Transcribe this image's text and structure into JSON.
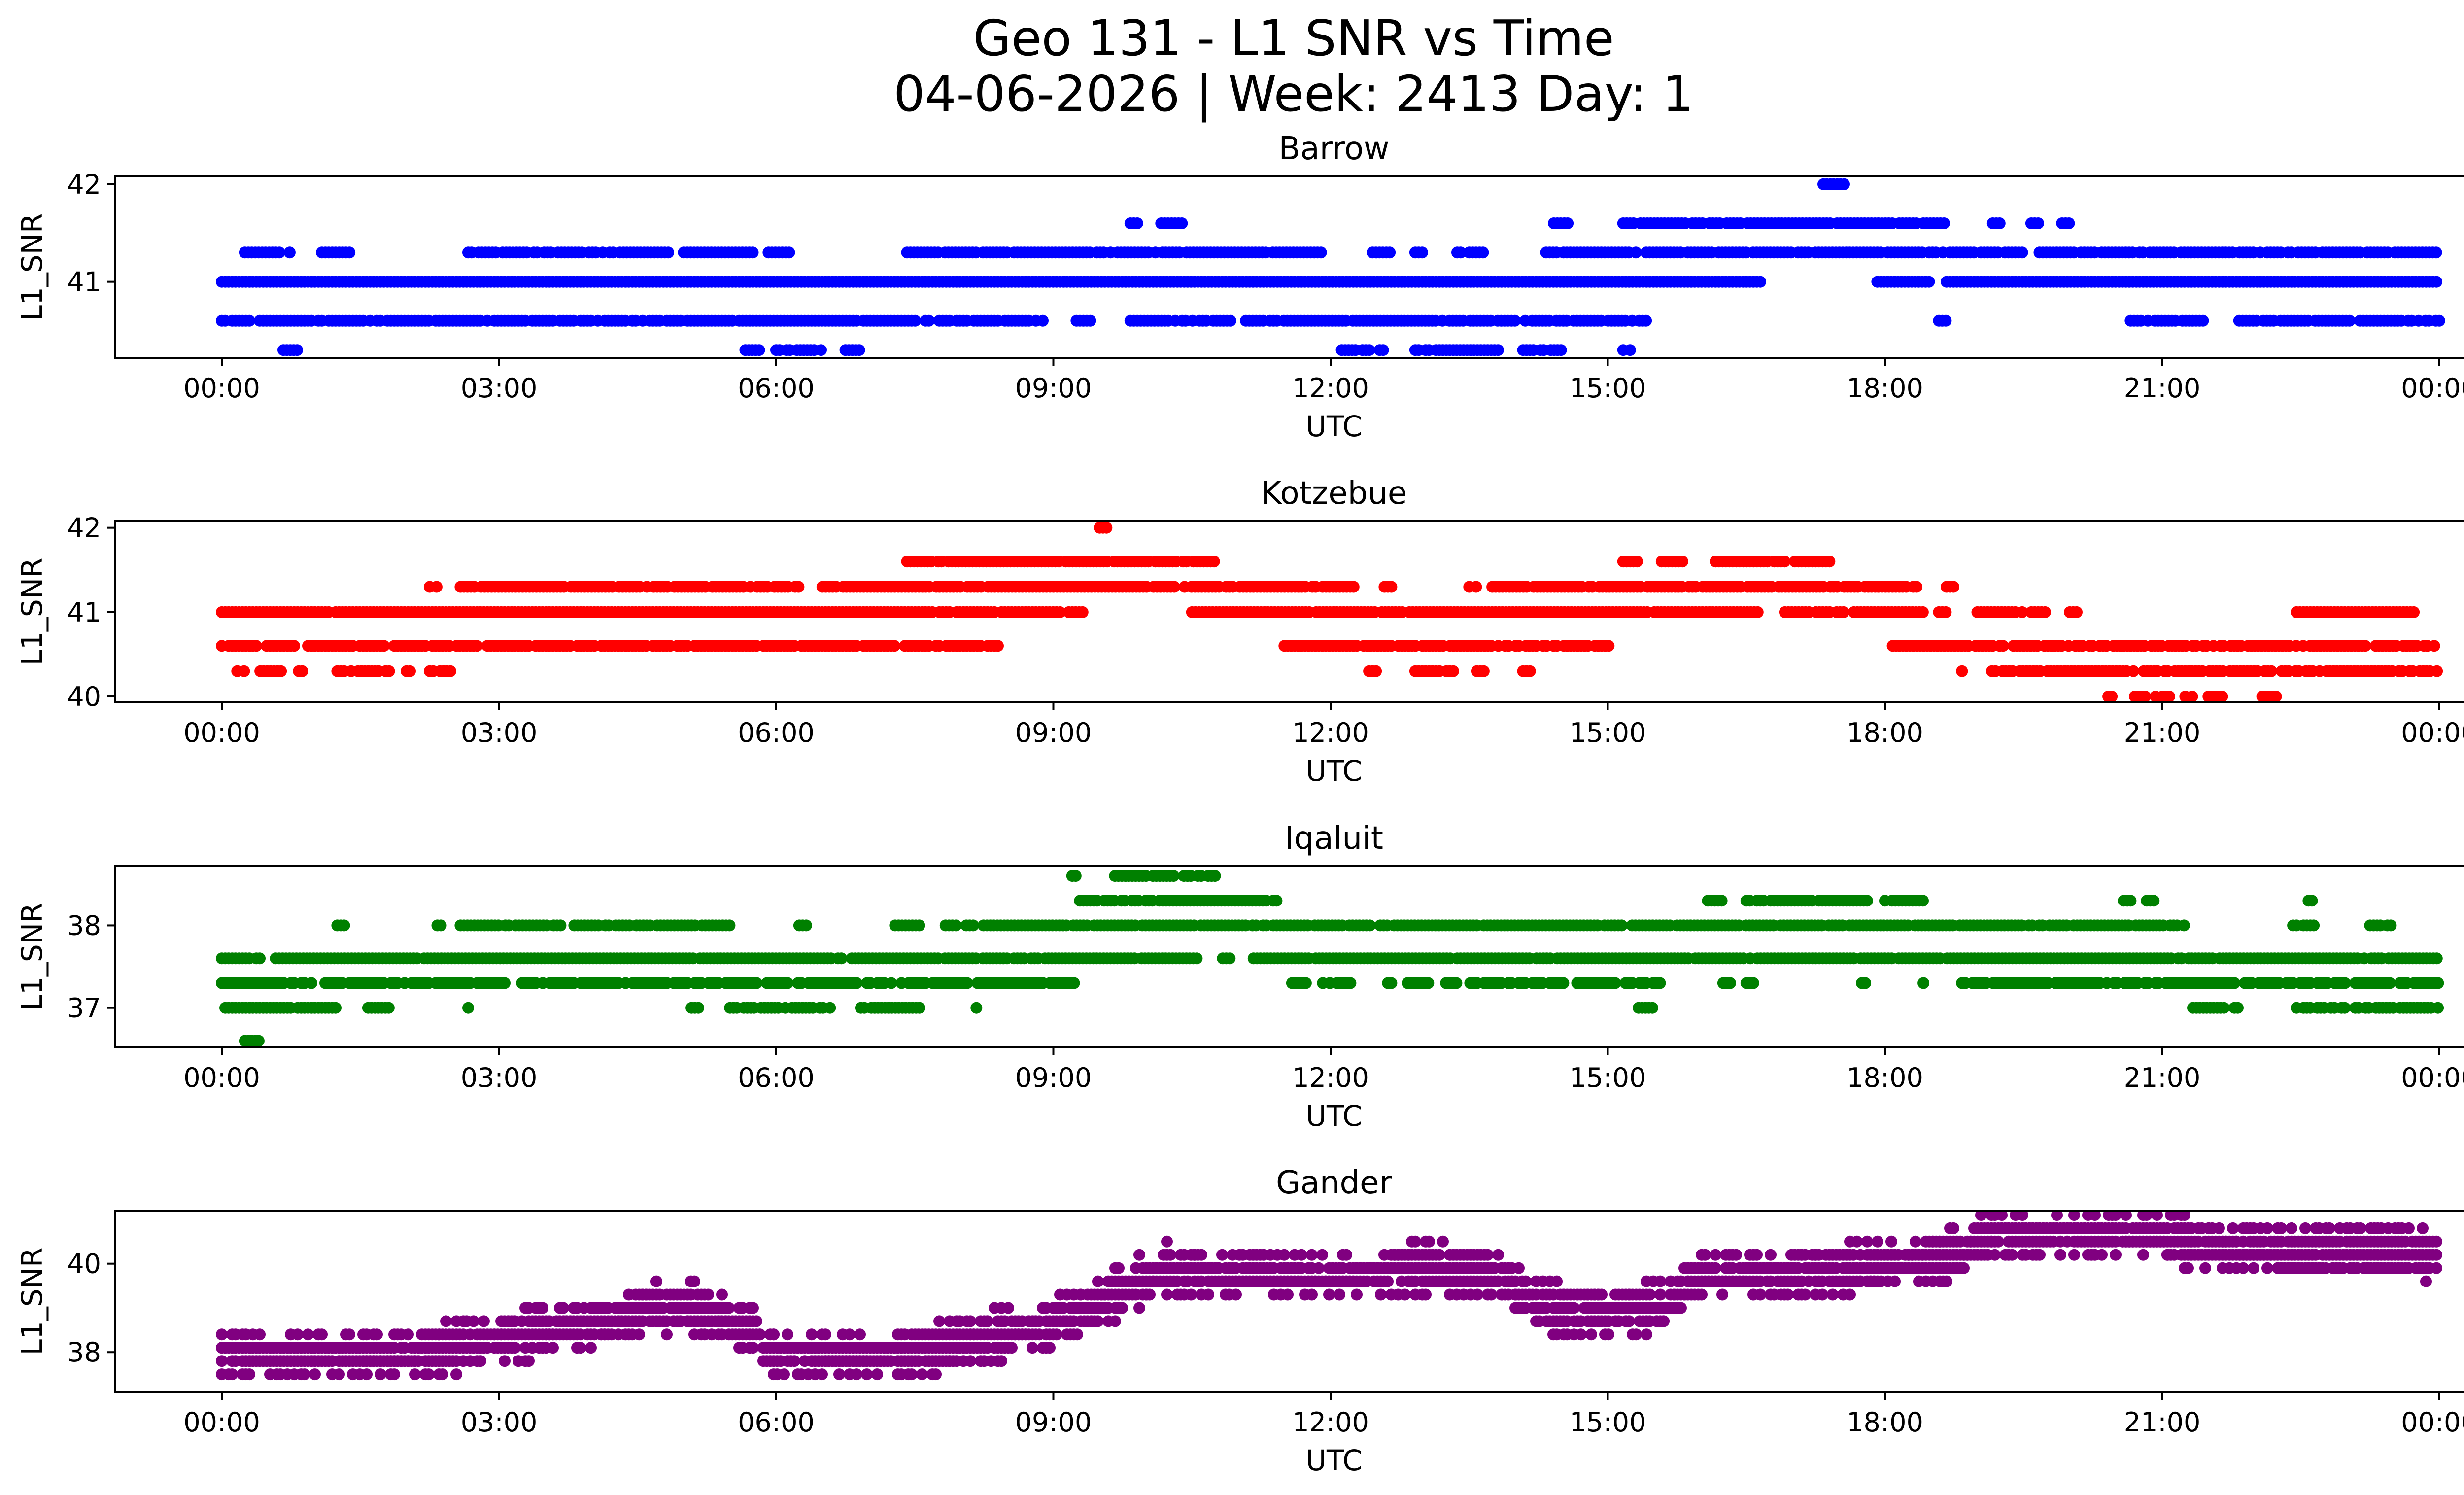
{
  "figure": {
    "title_line1": "Geo 131 - L1 SNR vs Time",
    "title_line2": "04-06-2026 | Week: 2413 Day: 1"
  },
  "chart_data": [
    {
      "type": "scatter",
      "title": "Barrow",
      "xlabel": "UTC",
      "ylabel": "L1_SNR",
      "color": "#0000ff",
      "xlim": [
        "23:36",
        "00:48 (next day)"
      ],
      "x_ticks": [
        "00:00",
        "03:00",
        "06:00",
        "09:00",
        "12:00",
        "15:00",
        "18:00",
        "21:00",
        "00:00"
      ],
      "ylim": [
        40.22,
        42.08
      ],
      "y_ticks": [
        42,
        41
      ],
      "y_tick_labels": [
        "42",
        "41"
      ],
      "bands": [
        {
          "y": 40.3,
          "segments": [
            [
              "00:40",
              "00:50"
            ],
            [
              "05:40",
              "05:50"
            ],
            [
              "06:00",
              "06:30"
            ],
            [
              "06:45",
              "06:55"
            ],
            [
              "12:05",
              "12:35"
            ],
            [
              "12:55",
              "13:50"
            ],
            [
              "14:05",
              "14:30"
            ],
            [
              "15:10",
              "15:15"
            ]
          ],
          "density": 0.8
        },
        {
          "y": 40.6,
          "segments": [
            [
              "00:00",
              "08:55"
            ],
            [
              "09:15",
              "09:25"
            ],
            [
              "09:50",
              "10:55"
            ],
            [
              "11:05",
              "15:25"
            ],
            [
              "18:35",
              "18:40"
            ],
            [
              "20:35",
              "21:30"
            ],
            [
              "21:50",
              "24:00"
            ]
          ],
          "density": 0.85
        },
        {
          "y": 41.0,
          "segments": [
            [
              "00:00",
              "16:40"
            ],
            [
              "17:55",
              "18:30"
            ],
            [
              "18:40",
              "24:00"
            ]
          ],
          "density": 1.0
        },
        {
          "y": 41.3,
          "segments": [
            [
              "00:15",
              "00:45"
            ],
            [
              "01:05",
              "01:25"
            ],
            [
              "02:40",
              "04:50"
            ],
            [
              "05:00",
              "05:45"
            ],
            [
              "05:55",
              "06:10"
            ],
            [
              "07:25",
              "11:55"
            ],
            [
              "12:25",
              "12:40"
            ],
            [
              "12:55",
              "13:00"
            ],
            [
              "13:20",
              "13:25"
            ],
            [
              "13:30",
              "13:40"
            ],
            [
              "14:20",
              "24:00"
            ]
          ],
          "density": 0.9
        },
        {
          "y": 41.6,
          "segments": [
            [
              "09:50",
              "09:55"
            ],
            [
              "10:10",
              "10:25"
            ],
            [
              "14:25",
              "14:35"
            ],
            [
              "15:10",
              "18:40"
            ],
            [
              "19:10",
              "19:15"
            ],
            [
              "19:35",
              "19:40"
            ],
            [
              "19:55",
              "20:00"
            ]
          ],
          "density": 0.9
        },
        {
          "y": 42.0,
          "segments": [
            [
              "17:20",
              "17:35"
            ]
          ],
          "density": 1.0
        }
      ]
    },
    {
      "type": "scatter",
      "title": "Kotzebue",
      "xlabel": "UTC",
      "ylabel": "L1_SNR",
      "color": "#ff0000",
      "xlim": [
        "23:36",
        "00:48 (next day)"
      ],
      "x_ticks": [
        "00:00",
        "03:00",
        "06:00",
        "09:00",
        "12:00",
        "15:00",
        "18:00",
        "21:00",
        "00:00"
      ],
      "ylim": [
        39.93,
        42.08
      ],
      "y_ticks": [
        42,
        41,
        40
      ],
      "y_tick_labels": [
        "42",
        "41",
        "40"
      ],
      "bands": [
        {
          "y": 40.0,
          "segments": [
            [
              "20:25",
              "20:30"
            ],
            [
              "20:40",
              "21:05"
            ],
            [
              "21:15",
              "21:20"
            ],
            [
              "21:30",
              "21:40"
            ],
            [
              "22:05",
              "22:15"
            ]
          ],
          "density": 0.7
        },
        {
          "y": 40.3,
          "segments": [
            [
              "00:10",
              "00:15"
            ],
            [
              "00:25",
              "00:40"
            ],
            [
              "00:50",
              "00:55"
            ],
            [
              "01:15",
              "01:50"
            ],
            [
              "02:00",
              "02:05"
            ],
            [
              "02:15",
              "02:30"
            ],
            [
              "12:25",
              "12:30"
            ],
            [
              "12:55",
              "13:20"
            ],
            [
              "13:35",
              "13:40"
            ],
            [
              "14:05",
              "14:10"
            ],
            [
              "18:50",
              "18:55"
            ],
            [
              "19:05",
              "24:00"
            ]
          ],
          "density": 0.85
        },
        {
          "y": 40.6,
          "segments": [
            [
              "00:00",
              "08:25"
            ],
            [
              "11:30",
              "15:05"
            ],
            [
              "18:05",
              "24:00"
            ]
          ],
          "density": 0.85
        },
        {
          "y": 41.0,
          "segments": [
            [
              "00:00",
              "09:05"
            ],
            [
              "09:10",
              "09:20"
            ],
            [
              "10:30",
              "16:40"
            ],
            [
              "16:55",
              "18:25"
            ],
            [
              "18:35",
              "18:40"
            ],
            [
              "19:00",
              "19:30"
            ],
            [
              "19:35",
              "19:45"
            ],
            [
              "20:00",
              "20:05"
            ],
            [
              "22:25",
              "23:45"
            ]
          ],
          "density": 0.95
        },
        {
          "y": 41.3,
          "segments": [
            [
              "02:15",
              "02:20"
            ],
            [
              "02:35",
              "06:15"
            ],
            [
              "06:30",
              "12:15"
            ],
            [
              "12:35",
              "12:40"
            ],
            [
              "13:30",
              "13:35"
            ],
            [
              "13:45",
              "18:25"
            ],
            [
              "18:40",
              "18:45"
            ]
          ],
          "density": 0.9
        },
        {
          "y": 41.6,
          "segments": [
            [
              "07:25",
              "10:45"
            ],
            [
              "15:10",
              "15:20"
            ],
            [
              "15:35",
              "15:50"
            ],
            [
              "16:10",
              "17:25"
            ]
          ],
          "density": 0.9
        },
        {
          "y": 42.0,
          "segments": [
            [
              "09:30",
              "09:35"
            ]
          ],
          "density": 1.0
        }
      ]
    },
    {
      "type": "scatter",
      "title": "Iqaluit",
      "xlabel": "UTC",
      "ylabel": "L1_SNR",
      "color": "#008000",
      "xlim": [
        "23:36",
        "00:48 (next day)"
      ],
      "x_ticks": [
        "00:00",
        "03:00",
        "06:00",
        "09:00",
        "12:00",
        "15:00",
        "18:00",
        "21:00",
        "00:00"
      ],
      "ylim": [
        36.52,
        38.72
      ],
      "y_ticks": [
        38,
        37
      ],
      "y_tick_labels": [
        "38",
        "37"
      ],
      "bands": [
        {
          "y": 36.6,
          "segments": [
            [
              "00:15",
              "00:25"
            ]
          ],
          "density": 1.0
        },
        {
          "y": 37.0,
          "segments": [
            [
              "00:00",
              "01:15"
            ],
            [
              "01:35",
              "01:50"
            ],
            [
              "02:40",
              "02:45"
            ],
            [
              "05:05",
              "05:10"
            ],
            [
              "05:30",
              "06:35"
            ],
            [
              "06:55",
              "07:35"
            ],
            [
              "08:10",
              "08:15"
            ],
            [
              "15:20",
              "15:30"
            ],
            [
              "21:20",
              "21:55"
            ],
            [
              "22:25",
              "24:00"
            ]
          ],
          "density": 0.85
        },
        {
          "y": 37.3,
          "segments": [
            [
              "00:00",
              "03:05"
            ],
            [
              "03:15",
              "09:15"
            ],
            [
              "11:35",
              "11:45"
            ],
            [
              "11:55",
              "12:15"
            ],
            [
              "12:35",
              "12:40"
            ],
            [
              "12:50",
              "13:05"
            ],
            [
              "13:15",
              "15:35"
            ],
            [
              "16:15",
              "16:20"
            ],
            [
              "16:30",
              "16:35"
            ],
            [
              "17:45",
              "17:50"
            ],
            [
              "18:25",
              "18:30"
            ],
            [
              "18:50",
              "24:00"
            ]
          ],
          "density": 0.85
        },
        {
          "y": 37.6,
          "segments": [
            [
              "00:00",
              "00:25"
            ],
            [
              "00:35",
              "10:35"
            ],
            [
              "10:50",
              "10:55"
            ],
            [
              "11:10",
              "24:00"
            ]
          ],
          "density": 0.95
        },
        {
          "y": 38.0,
          "segments": [
            [
              "01:15",
              "01:20"
            ],
            [
              "02:20",
              "02:25"
            ],
            [
              "02:35",
              "05:30"
            ],
            [
              "06:15",
              "06:20"
            ],
            [
              "07:15",
              "07:35"
            ],
            [
              "07:50",
              "21:15"
            ],
            [
              "22:25",
              "22:40"
            ],
            [
              "23:15",
              "23:30"
            ]
          ],
          "density": 0.9
        },
        {
          "y": 38.3,
          "segments": [
            [
              "09:15",
              "11:25"
            ],
            [
              "16:05",
              "16:15"
            ],
            [
              "16:30",
              "17:50"
            ],
            [
              "18:00",
              "18:25"
            ],
            [
              "20:35",
              "20:40"
            ],
            [
              "20:50",
              "20:55"
            ],
            [
              "22:35",
              "22:40"
            ]
          ],
          "density": 0.9
        },
        {
          "y": 38.6,
          "segments": [
            [
              "09:10",
              "09:15"
            ],
            [
              "09:40",
              "10:45"
            ]
          ],
          "density": 0.9
        }
      ]
    },
    {
      "type": "scatter",
      "title": "Gander",
      "xlabel": "UTC",
      "ylabel": "L1_SNR",
      "color": "#800080",
      "xlim": [
        "23:36",
        "00:48 (next day)"
      ],
      "x_ticks": [
        "00:00",
        "03:00",
        "06:00",
        "09:00",
        "12:00",
        "15:00",
        "18:00",
        "21:00",
        "00:00"
      ],
      "ylim": [
        37.1,
        41.2
      ],
      "y_ticks": [
        40,
        38
      ],
      "y_tick_labels": [
        "40",
        "38"
      ],
      "spread": 0.48,
      "trend": [
        {
          "t": "00:00",
          "y": 38.0
        },
        {
          "t": "01:00",
          "y": 38.0
        },
        {
          "t": "02:00",
          "y": 37.9
        },
        {
          "t": "02:45",
          "y": 38.2
        },
        {
          "t": "03:30",
          "y": 38.5
        },
        {
          "t": "04:15",
          "y": 38.8
        },
        {
          "t": "05:00",
          "y": 39.1
        },
        {
          "t": "05:35",
          "y": 38.7
        },
        {
          "t": "06:00",
          "y": 38.0
        },
        {
          "t": "07:00",
          "y": 37.9
        },
        {
          "t": "08:00",
          "y": 38.2
        },
        {
          "t": "09:00",
          "y": 38.7
        },
        {
          "t": "09:40",
          "y": 39.3
        },
        {
          "t": "10:15",
          "y": 39.9
        },
        {
          "t": "11:00",
          "y": 39.7
        },
        {
          "t": "12:00",
          "y": 39.7
        },
        {
          "t": "13:00",
          "y": 39.9
        },
        {
          "t": "13:45",
          "y": 39.8
        },
        {
          "t": "14:15",
          "y": 39.0
        },
        {
          "t": "15:00",
          "y": 38.9
        },
        {
          "t": "15:40",
          "y": 39.1
        },
        {
          "t": "16:00",
          "y": 39.7
        },
        {
          "t": "17:00",
          "y": 39.8
        },
        {
          "t": "18:00",
          "y": 40.0
        },
        {
          "t": "18:45",
          "y": 40.2
        },
        {
          "t": "19:15",
          "y": 40.7
        },
        {
          "t": "20:00",
          "y": 40.7
        },
        {
          "t": "21:00",
          "y": 40.6
        },
        {
          "t": "22:00",
          "y": 40.3
        },
        {
          "t": "24:00",
          "y": 40.2
        }
      ]
    }
  ]
}
